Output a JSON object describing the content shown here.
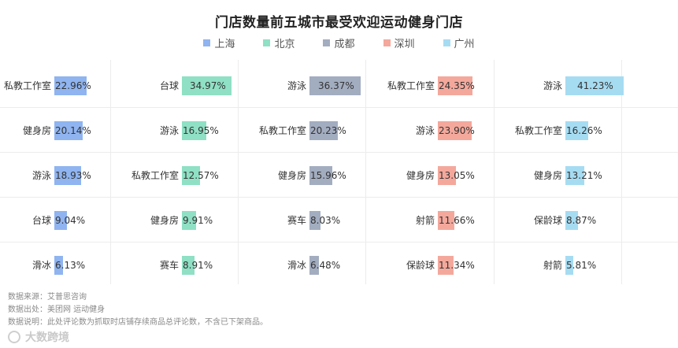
{
  "chart_data": {
    "type": "bar",
    "title": "门店数量前五城市最受欢迎运动健身门店",
    "legend_position": "top-center",
    "xlim": [
      0,
      45
    ],
    "series": [
      {
        "name": "上海",
        "color": "#8fb4f0",
        "categories": [
          "私教工作室",
          "健身房",
          "游泳",
          "台球",
          "滑冰"
        ],
        "values": [
          22.96,
          20.14,
          18.93,
          9.04,
          6.13
        ],
        "labels": [
          "22.96%",
          "20.14%",
          "18.93%",
          "9.04%",
          "6.13%"
        ]
      },
      {
        "name": "北京",
        "color": "#8fe0c4",
        "categories": [
          "台球",
          "游泳",
          "私教工作室",
          "健身房",
          "赛车"
        ],
        "values": [
          34.97,
          16.95,
          12.57,
          9.91,
          8.91
        ],
        "labels": [
          "34.97%",
          "16.95%",
          "12.57%",
          "9.91%",
          "8.91%"
        ]
      },
      {
        "name": "成都",
        "color": "#a3adc0",
        "categories": [
          "游泳",
          "私教工作室",
          "健身房",
          "赛车",
          "滑冰"
        ],
        "values": [
          36.37,
          20.23,
          15.96,
          8.03,
          6.48
        ],
        "labels": [
          "36.37%",
          "20.23%",
          "15.96%",
          "8.03%",
          "6.48%"
        ]
      },
      {
        "name": "深圳",
        "color": "#f4a89c",
        "categories": [
          "私教工作室",
          "游泳",
          "健身房",
          "射箭",
          "保龄球"
        ],
        "values": [
          24.35,
          23.9,
          13.05,
          11.66,
          11.34
        ],
        "labels": [
          "24.35%",
          "23.90%",
          "13.05%",
          "11.66%",
          "11.34%"
        ]
      },
      {
        "name": "广州",
        "color": "#a6dcf2",
        "categories": [
          "游泳",
          "私教工作室",
          "健身房",
          "保龄球",
          "射箭"
        ],
        "values": [
          41.23,
          16.26,
          13.21,
          8.87,
          5.81
        ],
        "labels": [
          "41.23%",
          "16.26%",
          "13.21%",
          "8.87%",
          "5.81%"
        ]
      }
    ]
  },
  "footer": {
    "source": "数据来源：艾普思咨询",
    "origin": "数据出处：美团网 运动健身",
    "note": "数据说明：此处评论数为抓取时店铺存续商品总评论数，不含已下架商品。"
  },
  "brand": {
    "text": "大数跨境"
  }
}
